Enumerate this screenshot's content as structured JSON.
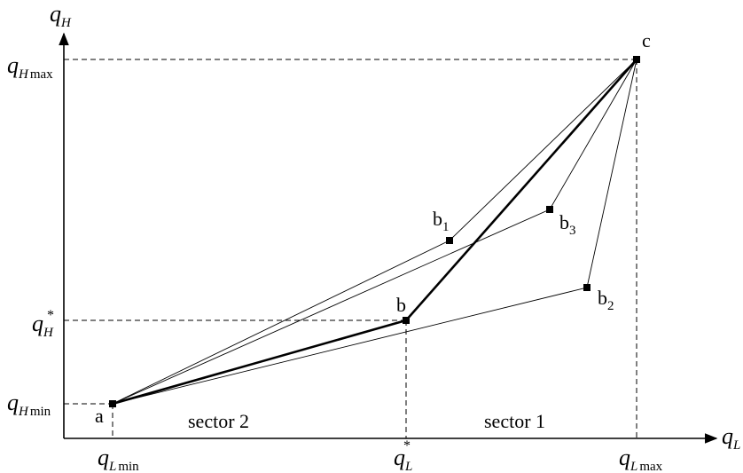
{
  "axes": {
    "y": {
      "var": "q",
      "sub": "H"
    },
    "x": {
      "var": "q",
      "sub": "L"
    }
  },
  "y_ticks": {
    "max": {
      "var": "q",
      "sub": "H",
      "subtext": "max"
    },
    "star": {
      "var": "q",
      "sub": "H",
      "sup": "*"
    },
    "min": {
      "var": "q",
      "sub": "H",
      "subtext": "min"
    }
  },
  "x_ticks": {
    "min": {
      "var": "q",
      "sub": "L",
      "subtext": "min"
    },
    "star": {
      "var": "q",
      "sub": "L",
      "sup": "*"
    },
    "max": {
      "var": "q",
      "sub": "L",
      "subtext": "max"
    }
  },
  "points": {
    "a": "a",
    "b": "b",
    "c": "c",
    "b1": {
      "base": "b",
      "sub": "1"
    },
    "b2": {
      "base": "b",
      "sub": "2"
    },
    "b3": {
      "base": "b",
      "sub": "3"
    }
  },
  "sectors": {
    "sector1": "sector 1",
    "sector2": "sector 2"
  }
}
